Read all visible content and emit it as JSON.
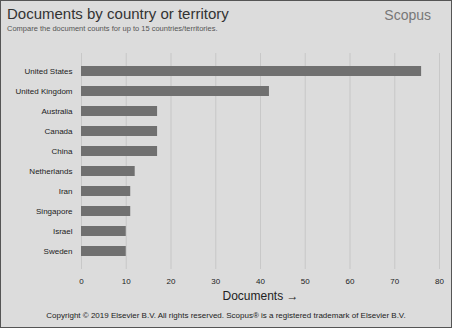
{
  "chart_data": {
    "type": "bar",
    "orientation": "horizontal",
    "title": "Documents by country or territory",
    "subtitle": "Compare the document counts for up to 15 countries/territories.",
    "annotations": [
      "Scopus",
      "Copyright © 2019 Elsevier B.V. All rights reserved. Scopus® is a registered trademark of Elsevier B.V."
    ],
    "x_label": "Documents",
    "categories": [
      "United States",
      "United Kingdom",
      "Australia",
      "Canada",
      "China",
      "Netherlands",
      "Iran",
      "Singapore",
      "Israel",
      "Sweden"
    ],
    "values": [
      76,
      42,
      17,
      17,
      17,
      12,
      11,
      11,
      10,
      10
    ],
    "color": "#707070",
    "xlim": [
      0,
      80
    ],
    "xticks": [
      0,
      10,
      20,
      30,
      40,
      50,
      60,
      70,
      80
    ],
    "grid": true
  }
}
